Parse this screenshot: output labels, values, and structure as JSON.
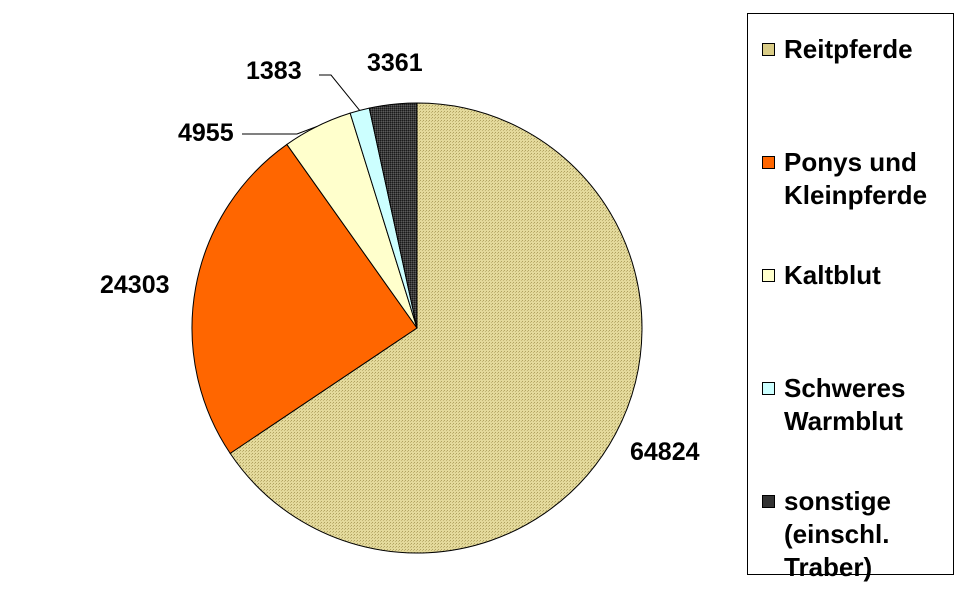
{
  "chart_data": {
    "type": "pie",
    "categories": [
      "Reitpferde",
      "Ponys und Kleinpferde",
      "Kaltblut",
      "Schweres Warmblut",
      "sonstige (einschl. Traber)"
    ],
    "values": [
      64824,
      24303,
      4955,
      1383,
      3361
    ],
    "data_labels": [
      "64824",
      "24303",
      "4955",
      "1383",
      "3361"
    ],
    "legend_labels": [
      "Reitpferde",
      "Ponys und\nKleinpferde",
      "Kaltblut",
      "Schweres\nWarmblut",
      "sonstige\n(einschl.\nTraber)"
    ],
    "colors": [
      "#D9CC86",
      "#FF6600",
      "#FFFFCC",
      "#CCFFFF",
      "#333333"
    ],
    "start": "12 o'clock",
    "direction": "clockwise",
    "legend_position": "right"
  }
}
